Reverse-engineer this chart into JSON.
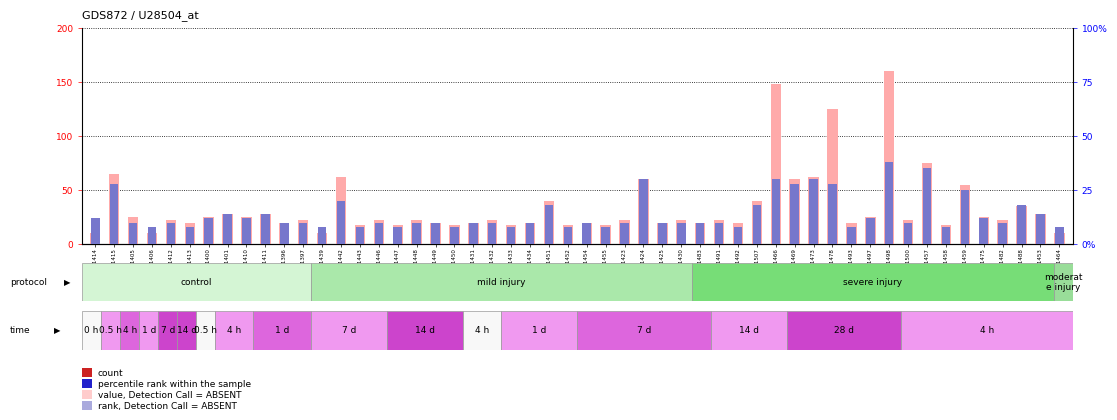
{
  "title": "GDS872 / U28504_at",
  "samples": [
    "GSM31414",
    "GSM31415",
    "GSM31405",
    "GSM31406",
    "GSM31412",
    "GSM31413",
    "GSM31400",
    "GSM31401",
    "GSM31410",
    "GSM31411",
    "GSM31396",
    "GSM31397",
    "GSM31439",
    "GSM31442",
    "GSM31443",
    "GSM31446",
    "GSM31447",
    "GSM31448",
    "GSM31449",
    "GSM31450",
    "GSM31431",
    "GSM31432",
    "GSM31433",
    "GSM31434",
    "GSM31451",
    "GSM31452",
    "GSM31454",
    "GSM31455",
    "GSM31423",
    "GSM31424",
    "GSM31425",
    "GSM31430",
    "GSM31483",
    "GSM31491",
    "GSM31492",
    "GSM31507",
    "GSM31466",
    "GSM31469",
    "GSM31473",
    "GSM31478",
    "GSM31493",
    "GSM31497",
    "GSM31498",
    "GSM31500",
    "GSM31457",
    "GSM31458",
    "GSM31459",
    "GSM31475",
    "GSM31482",
    "GSM31488",
    "GSM31453",
    "GSM31464"
  ],
  "count_values": [
    10,
    65,
    25,
    10,
    22,
    20,
    25,
    28,
    25,
    28,
    20,
    22,
    10,
    62,
    18,
    22,
    18,
    22,
    20,
    18,
    20,
    22,
    18,
    20,
    40,
    18,
    20,
    18,
    22,
    60,
    20,
    22,
    20,
    22,
    20,
    40,
    148,
    60,
    62,
    125,
    20,
    25,
    160,
    22,
    75,
    18,
    55,
    25,
    22,
    35,
    28,
    10
  ],
  "rank_values": [
    12,
    28,
    10,
    8,
    10,
    8,
    12,
    14,
    12,
    14,
    10,
    10,
    8,
    20,
    8,
    10,
    8,
    10,
    10,
    8,
    10,
    10,
    8,
    10,
    18,
    8,
    10,
    8,
    10,
    30,
    10,
    10,
    10,
    10,
    8,
    18,
    30,
    28,
    30,
    28,
    8,
    12,
    38,
    10,
    35,
    8,
    25,
    12,
    10,
    18,
    14,
    8
  ],
  "protocol_groups": [
    {
      "label": "control",
      "start": 0,
      "end": 12,
      "color": "#d4f5d4"
    },
    {
      "label": "mild injury",
      "start": 12,
      "end": 32,
      "color": "#aae8aa"
    },
    {
      "label": "severe injury",
      "start": 32,
      "end": 51,
      "color": "#77dd77"
    },
    {
      "label": "moderat\ne injury",
      "start": 51,
      "end": 52,
      "color": "#99dd99"
    }
  ],
  "time_groups": [
    {
      "label": "0 h",
      "start": 0,
      "end": 1,
      "color": "#f8f8f8"
    },
    {
      "label": "0.5 h",
      "start": 1,
      "end": 2,
      "color": "#f099f0"
    },
    {
      "label": "4 h",
      "start": 2,
      "end": 3,
      "color": "#dd66dd"
    },
    {
      "label": "1 d",
      "start": 3,
      "end": 4,
      "color": "#f099f0"
    },
    {
      "label": "7 d",
      "start": 4,
      "end": 5,
      "color": "#cc44cc"
    },
    {
      "label": "14 d",
      "start": 5,
      "end": 6,
      "color": "#cc44cc"
    },
    {
      "label": "0.5 h",
      "start": 6,
      "end": 7,
      "color": "#f8f8f8"
    },
    {
      "label": "4 h",
      "start": 7,
      "end": 9,
      "color": "#f099f0"
    },
    {
      "label": "1 d",
      "start": 9,
      "end": 12,
      "color": "#dd66dd"
    },
    {
      "label": "7 d",
      "start": 12,
      "end": 16,
      "color": "#f099f0"
    },
    {
      "label": "14 d",
      "start": 16,
      "end": 20,
      "color": "#cc44cc"
    },
    {
      "label": "4 h",
      "start": 20,
      "end": 22,
      "color": "#f8f8f8"
    },
    {
      "label": "1 d",
      "start": 22,
      "end": 26,
      "color": "#f099f0"
    },
    {
      "label": "7 d",
      "start": 26,
      "end": 33,
      "color": "#dd66dd"
    },
    {
      "label": "14 d",
      "start": 33,
      "end": 37,
      "color": "#f099f0"
    },
    {
      "label": "28 d",
      "start": 37,
      "end": 43,
      "color": "#cc44cc"
    },
    {
      "label": "4 h",
      "start": 43,
      "end": 52,
      "color": "#f099f0"
    }
  ],
  "bar_color_count": "#ffaaaa",
  "bar_color_rank": "#7777cc",
  "bg_color": "#ffffff",
  "legend_items": [
    {
      "label": "count",
      "color": "#cc2222"
    },
    {
      "label": "percentile rank within the sample",
      "color": "#2222cc"
    },
    {
      "label": "value, Detection Call = ABSENT",
      "color": "#ffcccc"
    },
    {
      "label": "rank, Detection Call = ABSENT",
      "color": "#aaaadd"
    }
  ]
}
